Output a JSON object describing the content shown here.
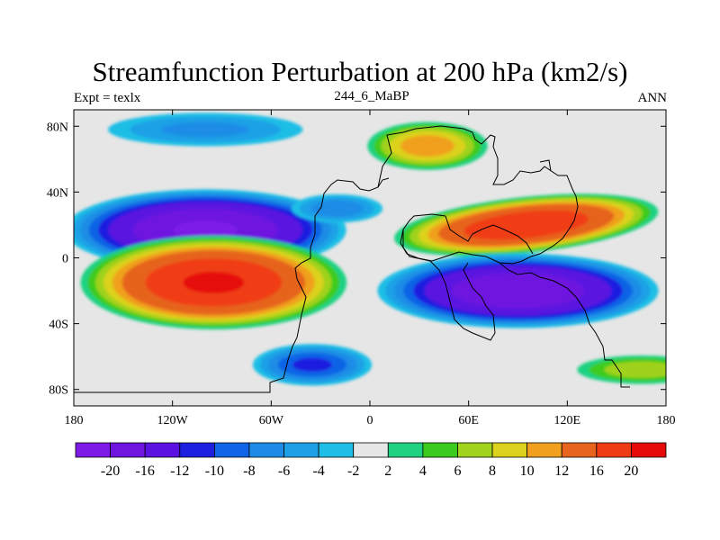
{
  "chart_data": {
    "type": "heatmap",
    "subtype": "filled-contour-map",
    "title": "Streamfunction Perturbation at 200 hPa (km2/s)",
    "left_string": "Expt = texlx",
    "center_string": "244_6_MaBP",
    "right_string": "ANN",
    "x_axis": {
      "range": [
        -180,
        180
      ],
      "ticks": [
        {
          "value": -180,
          "label": "180"
        },
        {
          "value": -120,
          "label": "120W"
        },
        {
          "value": -60,
          "label": "60W"
        },
        {
          "value": 0,
          "label": "0"
        },
        {
          "value": 60,
          "label": "60E"
        },
        {
          "value": 120,
          "label": "120E"
        },
        {
          "value": 180,
          "label": "180"
        }
      ]
    },
    "y_axis": {
      "range": [
        -90,
        90
      ],
      "ticks": [
        {
          "value": 80,
          "label": "80N"
        },
        {
          "value": 40,
          "label": "40N"
        },
        {
          "value": 0,
          "label": "0"
        },
        {
          "value": -40,
          "label": "40S"
        },
        {
          "value": -80,
          "label": "80S"
        }
      ]
    },
    "contour_levels": [
      -20,
      -16,
      -12,
      -10,
      -8,
      -6,
      -4,
      -2,
      2,
      4,
      6,
      8,
      10,
      12,
      16,
      20
    ],
    "colorbar_labels": [
      "-20",
      "-16",
      "-12",
      "-10",
      "-8",
      "-6",
      "-4",
      "-2",
      "2",
      "4",
      "6",
      "8",
      "10",
      "12",
      "16",
      "20"
    ],
    "colors": [
      "#7D1AE6",
      "#6E15E0",
      "#5A12E0",
      "#1E1EE0",
      "#1164E6",
      "#1E8CE6",
      "#1EA0E6",
      "#1EBEE6",
      "#E6E6E6",
      "#1ED282",
      "#3CCB1E",
      "#A0D21E",
      "#DCD21E",
      "#F0A01E",
      "#E6641E",
      "#F03C14",
      "#E60A0A"
    ],
    "features": [
      {
        "name": "negative-center-north-pacific",
        "lon": -100,
        "lat": 17,
        "value": -21
      },
      {
        "name": "positive-center-south-pacific",
        "lon": -95,
        "lat": -15,
        "value": 21
      },
      {
        "name": "positive-center-asia",
        "lon": 95,
        "lat": 20,
        "value": 20
      },
      {
        "name": "negative-center-indian-ocean",
        "lon": 90,
        "lat": -20,
        "value": -20
      },
      {
        "name": "positive-center-europe",
        "lon": 35,
        "lat": 68,
        "value": 12
      },
      {
        "name": "negative-center-north-atlantic",
        "lon": -20,
        "lat": 30,
        "value": -8
      },
      {
        "name": "negative-center-arctic",
        "lon": -100,
        "lat": 78,
        "value": -7
      },
      {
        "name": "positive-center-southern-ocean",
        "lon": 165,
        "lat": -68,
        "value": 8
      },
      {
        "name": "negative-center-south-atlantic",
        "lon": -35,
        "lat": -65,
        "value": -11
      }
    ]
  }
}
